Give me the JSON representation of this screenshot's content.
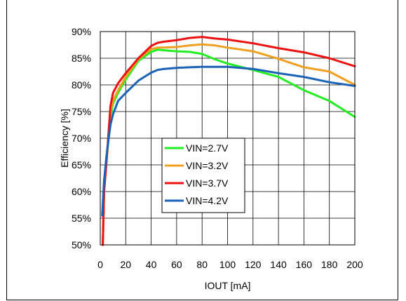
{
  "chart_data": {
    "type": "line",
    "title": "",
    "xlabel": "IOUT [mA]",
    "ylabel": "Efficiency [%]",
    "xlim": [
      0,
      200
    ],
    "ylim": [
      50,
      90
    ],
    "x_ticks": [
      0,
      20,
      40,
      60,
      80,
      100,
      120,
      140,
      160,
      180,
      200
    ],
    "x_tick_labels": [
      "0",
      "20",
      "40",
      "60",
      "80",
      "100",
      "120",
      "140",
      "160",
      "180",
      "200"
    ],
    "y_ticks": [
      50,
      55,
      60,
      65,
      70,
      75,
      80,
      85,
      90
    ],
    "y_tick_labels": [
      "50%",
      "55%",
      "60%",
      "65%",
      "70%",
      "75%",
      "80%",
      "85%",
      "90%"
    ],
    "grid": true,
    "legend_placement": "lower-center",
    "series": [
      {
        "name": "VIN=2.7V",
        "color": "#22ee22",
        "x": [
          2,
          3,
          5,
          8,
          10,
          14,
          20,
          30,
          40,
          45,
          50,
          60,
          70,
          80,
          90,
          100,
          120,
          140,
          160,
          180,
          200
        ],
        "y": [
          50,
          60,
          66,
          74,
          76.5,
          78.5,
          81,
          84.5,
          86.2,
          86.6,
          86.5,
          86.3,
          86.2,
          85.8,
          84.8,
          84,
          82.8,
          81.5,
          79,
          77,
          74
        ]
      },
      {
        "name": "VIN=3.2V",
        "color": "#f0a020",
        "x": [
          2,
          3,
          5,
          8,
          10,
          14,
          20,
          30,
          40,
          45,
          50,
          60,
          70,
          80,
          90,
          100,
          120,
          140,
          160,
          180,
          200
        ],
        "y": [
          50,
          60,
          66,
          75,
          77,
          79,
          81.5,
          84.8,
          86.7,
          87,
          87,
          87.1,
          87.4,
          87.6,
          87.4,
          87,
          86.3,
          84.9,
          83.3,
          82.5,
          80
        ]
      },
      {
        "name": "VIN=3.7V",
        "color": "#ee1111",
        "x": [
          2,
          3,
          5,
          8,
          10,
          14,
          20,
          30,
          40,
          45,
          50,
          60,
          70,
          80,
          90,
          100,
          120,
          140,
          160,
          180,
          200
        ],
        "y": [
          50,
          60,
          66,
          76,
          78.5,
          80.3,
          82.2,
          85,
          87.3,
          87.9,
          88.1,
          88.4,
          88.8,
          89,
          88.7,
          88.5,
          87.8,
          86.9,
          86.1,
          85,
          83.5
        ]
      },
      {
        "name": "VIN=4.2V",
        "color": "#1a62b8",
        "x": [
          1.5,
          3,
          5,
          8,
          10,
          14,
          20,
          30,
          40,
          45,
          50,
          60,
          70,
          80,
          90,
          100,
          120,
          140,
          160,
          180,
          200
        ],
        "y": [
          55.5,
          62,
          67,
          72.5,
          74.5,
          77,
          78.5,
          80.8,
          82.3,
          82.8,
          83,
          83.2,
          83.3,
          83.4,
          83.4,
          83.4,
          83,
          82.2,
          81.5,
          80.5,
          79.8
        ]
      }
    ]
  }
}
